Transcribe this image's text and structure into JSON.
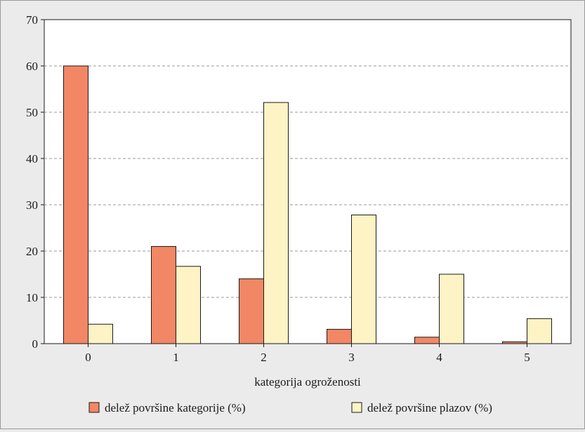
{
  "chart_data": {
    "type": "bar",
    "categories": [
      "0",
      "1",
      "2",
      "3",
      "4",
      "5"
    ],
    "series": [
      {
        "name": "delež površine kategorije (%)",
        "values": [
          60,
          21,
          14,
          3.1,
          1.4,
          0.4
        ],
        "color": "#f28766"
      },
      {
        "name": "delež površine plazov (%)",
        "values": [
          4.2,
          16.7,
          52.1,
          27.8,
          15.0,
          5.4
        ],
        "color": "#fdf3c4"
      }
    ],
    "title": "",
    "xlabel": "kategorija ogroženosti",
    "ylabel": "",
    "ylim": [
      0,
      70
    ],
    "yticks": [
      0,
      10,
      20,
      30,
      40,
      50,
      60,
      70
    ],
    "grid": "horizontal-dashed",
    "legend": "bottom"
  },
  "colors": {
    "background": "#ebebeb",
    "plot_background": "#ffffff",
    "bar_stroke": "#1a1a1a",
    "grid": "#9a9a9a"
  }
}
